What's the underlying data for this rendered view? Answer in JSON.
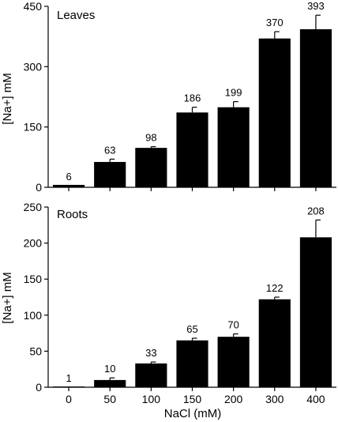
{
  "chart_data": [
    {
      "type": "bar",
      "panel_title": "Leaves",
      "ylabel": "[Na+] mM",
      "xlabel": "",
      "categories": [
        "0",
        "50",
        "100",
        "150",
        "200",
        "300",
        "400"
      ],
      "values": [
        6,
        63,
        98,
        186,
        199,
        370,
        393
      ],
      "errors": [
        0,
        7,
        3,
        13,
        14,
        17,
        35
      ],
      "data_labels": [
        "6",
        "63",
        "98",
        "186",
        "199",
        "370",
        "393"
      ],
      "ylim": [
        0,
        450
      ],
      "yticks": [
        0,
        150,
        300,
        450
      ],
      "bar_color": "#000000",
      "grid": false
    },
    {
      "type": "bar",
      "panel_title": "Roots",
      "ylabel": "[Na+] mM",
      "xlabel": "NaCl (mM)",
      "categories": [
        "0",
        "50",
        "100",
        "150",
        "200",
        "300",
        "400"
      ],
      "values": [
        1,
        10,
        33,
        65,
        70,
        122,
        208
      ],
      "errors": [
        0,
        3,
        2,
        3,
        4,
        3,
        24
      ],
      "data_labels": [
        "1",
        "10",
        "33",
        "65",
        "70",
        "122",
        "208"
      ],
      "ylim": [
        0,
        250
      ],
      "yticks": [
        0,
        50,
        100,
        150,
        200,
        250
      ],
      "bar_color": "#000000",
      "grid": false
    }
  ]
}
